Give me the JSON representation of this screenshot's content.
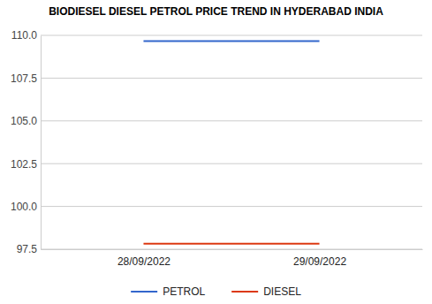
{
  "chart_data": {
    "type": "line",
    "title": "BIODIESEL DIESEL PETROL PRICE TREND IN HYDERABAD INDIA",
    "categories": [
      "28/09/2022",
      "29/09/2022"
    ],
    "series": [
      {
        "name": "PETROL",
        "color": "#3366cc",
        "values": [
          109.66,
          109.66
        ]
      },
      {
        "name": "DIESEL",
        "color": "#dc3912",
        "values": [
          97.82,
          97.82
        ]
      }
    ],
    "ylim": [
      97.5,
      110.0
    ],
    "yticks": [
      97.5,
      {
        "value": 100.0,
        "label": "100.0"
      },
      102.5,
      {
        "value": 105.0,
        "label": "105.0"
      },
      107.5,
      {
        "value": 110.0,
        "label": "110.0"
      }
    ],
    "grid": true,
    "legend": "bottom"
  }
}
